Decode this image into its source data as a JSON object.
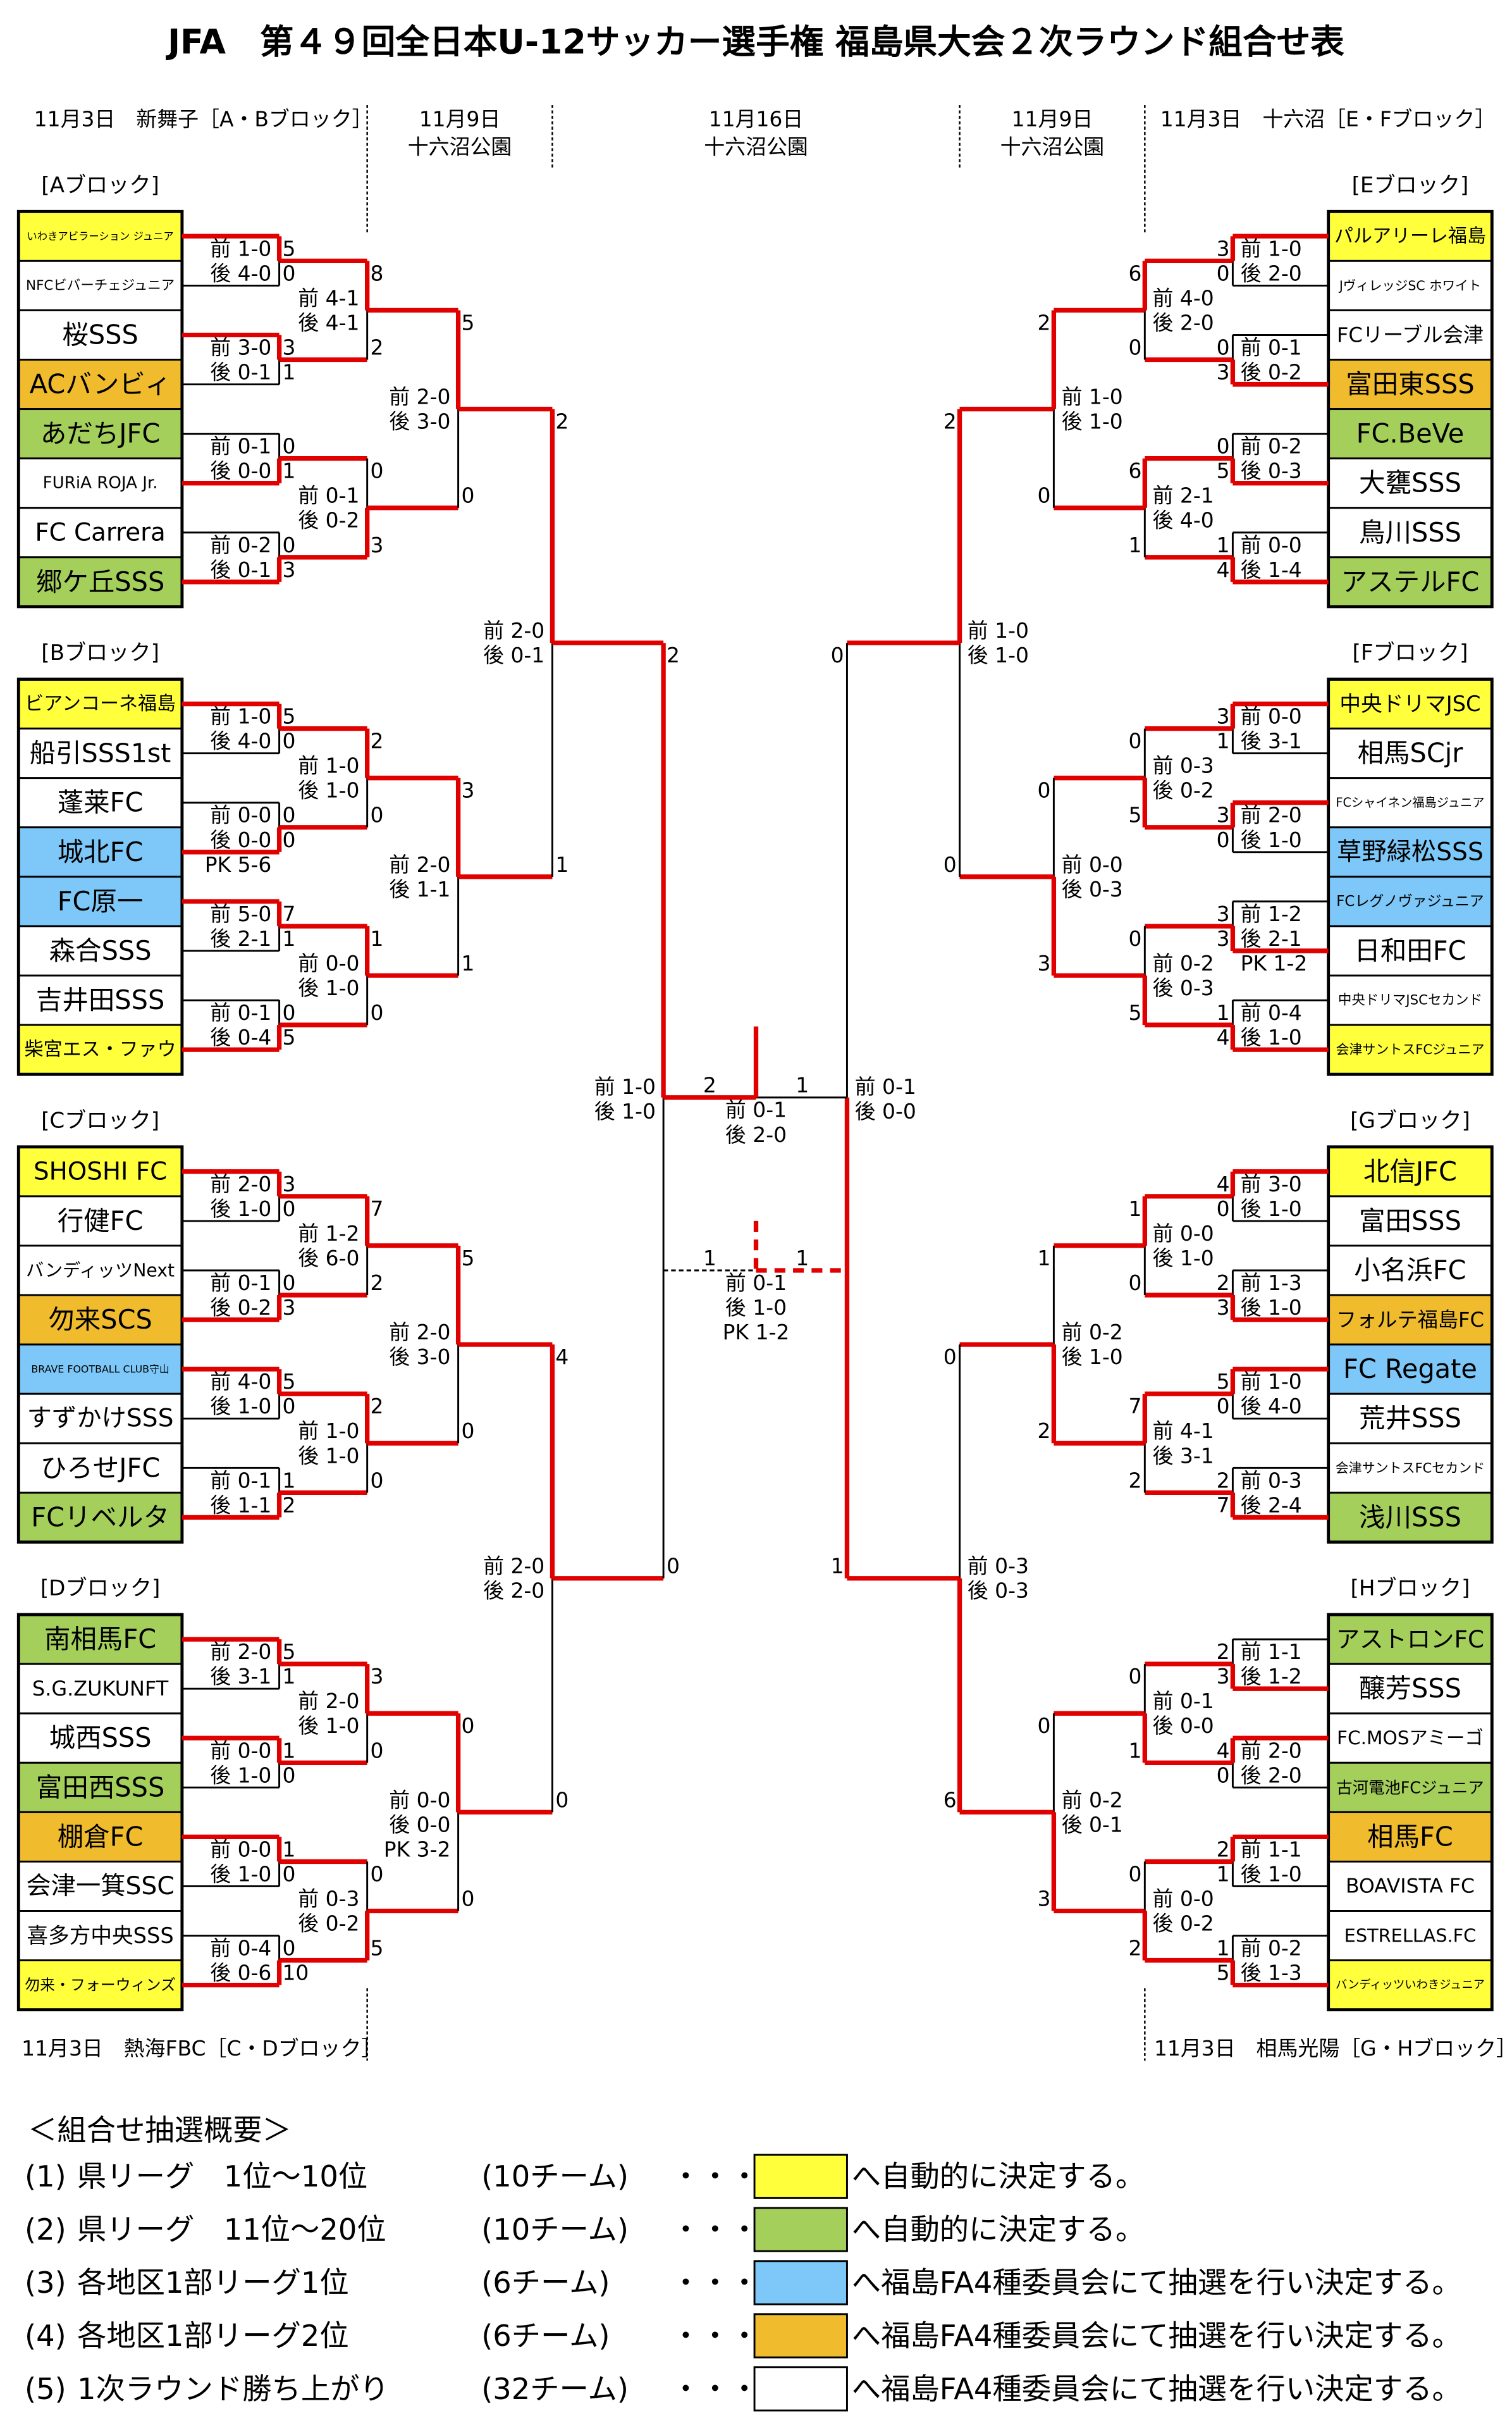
{
  "title": "JFA　第４９回全日本U-12サッカー選手権 福島県大会２次ラウンド組合せ表",
  "headers": {
    "left_r1": "11月3日　新舞子［A・Bブロック］",
    "left_r2_date": "11月9日",
    "left_r2_venue": "十六沼公園",
    "center_date": "11月16日",
    "center_venue": "十六沼公園",
    "right_r2_date": "11月9日",
    "right_r2_venue": "十六沼公園",
    "right_r1": "11月3日　十六沼［E・Fブロック］",
    "bottom_left": "11月3日　熱海FBC［C・Dブロック］",
    "bottom_right": "11月3日　相馬光陽［G・Hブロック］"
  },
  "labels": {
    "first": "前",
    "second": "後",
    "pk": "PK"
  },
  "colors": {
    "y": "#FFFF3C",
    "g": "#A5CF5B",
    "b": "#7DC8F8",
    "o": "#F0BC2E",
    "w": "#FFFFFF",
    "red": "#E00000"
  },
  "blocks": [
    {
      "label": "[Aブロック]",
      "side": "left",
      "teams": [
        [
          "いわきアビラーション ジュニア",
          "y"
        ],
        [
          "NFCビバーチェジュニア",
          "w"
        ],
        [
          "桜SSS",
          "w"
        ],
        [
          "ACバンビィ",
          "o"
        ],
        [
          "あだちJFC",
          "g"
        ],
        [
          "FURiA ROJA Jr.",
          "w"
        ],
        [
          "FC Carrera",
          "w"
        ],
        [
          "郷ケ丘SSS",
          "g"
        ]
      ],
      "r1": [
        {
          "s": [
            5,
            0
          ],
          "h1": "1-0",
          "h2": "4-0",
          "w": 0
        },
        {
          "s": [
            3,
            1
          ],
          "h1": "3-0",
          "h2": "0-1",
          "w": 0
        },
        {
          "s": [
            0,
            1
          ],
          "h1": "0-1",
          "h2": "0-0",
          "w": 1
        },
        {
          "s": [
            0,
            3
          ],
          "h1": "0-2",
          "h2": "0-1",
          "w": 1
        }
      ],
      "r2": [
        {
          "s": [
            8,
            2
          ],
          "h1": "4-1",
          "h2": "4-1",
          "w": 0
        },
        {
          "s": [
            0,
            3
          ],
          "h1": "0-1",
          "h2": "0-2",
          "w": 1
        }
      ],
      "r3": {
        "s": [
          5,
          0
        ],
        "h1": "2-0",
        "h2": "3-0",
        "w": 0
      }
    },
    {
      "label": "[Bブロック]",
      "side": "left",
      "teams": [
        [
          "ビアンコーネ福島",
          "y"
        ],
        [
          "船引SSS1st",
          "w"
        ],
        [
          "蓬莱FC",
          "w"
        ],
        [
          "城北FC",
          "b"
        ],
        [
          "FC原一",
          "b"
        ],
        [
          "森合SSS",
          "w"
        ],
        [
          "吉井田SSS",
          "w"
        ],
        [
          "柴宮エス・ファウ",
          "y"
        ]
      ],
      "r1": [
        {
          "s": [
            5,
            0
          ],
          "h1": "1-0",
          "h2": "4-0",
          "w": 0
        },
        {
          "s": [
            0,
            0
          ],
          "h1": "0-0",
          "h2": "0-0",
          "pk": "5-6",
          "w": 1
        },
        {
          "s": [
            7,
            1
          ],
          "h1": "5-0",
          "h2": "2-1",
          "w": 0
        },
        {
          "s": [
            0,
            5
          ],
          "h1": "0-1",
          "h2": "0-4",
          "w": 1
        }
      ],
      "r2": [
        {
          "s": [
            2,
            0
          ],
          "h1": "1-0",
          "h2": "1-0",
          "w": 0
        },
        {
          "s": [
            1,
            0
          ],
          "h1": "0-0",
          "h2": "1-0",
          "w": 0
        }
      ],
      "r3": {
        "s": [
          3,
          1
        ],
        "h1": "2-0",
        "h2": "1-1",
        "w": 0
      }
    },
    {
      "label": "[Cブロック]",
      "side": "left",
      "teams": [
        [
          "SHOSHI FC",
          "y"
        ],
        [
          "行健FC",
          "w"
        ],
        [
          "バンディッツNext",
          "w"
        ],
        [
          "勿来SCS",
          "o"
        ],
        [
          "BRAVE FOOTBALL CLUB守山",
          "b"
        ],
        [
          "すずかけSSS",
          "w"
        ],
        [
          "ひろせJFC",
          "w"
        ],
        [
          "FCリベルタ",
          "g"
        ]
      ],
      "r1": [
        {
          "s": [
            3,
            0
          ],
          "h1": "2-0",
          "h2": "1-0",
          "w": 0
        },
        {
          "s": [
            0,
            3
          ],
          "h1": "0-1",
          "h2": "0-2",
          "w": 1
        },
        {
          "s": [
            5,
            0
          ],
          "h1": "4-0",
          "h2": "1-0",
          "w": 0
        },
        {
          "s": [
            1,
            2
          ],
          "h1": "0-1",
          "h2": "1-1",
          "w": 1
        }
      ],
      "r2": [
        {
          "s": [
            7,
            2
          ],
          "h1": "1-2",
          "h2": "6-0",
          "w": 0
        },
        {
          "s": [
            2,
            0
          ],
          "h1": "1-0",
          "h2": "1-0",
          "w": 0
        }
      ],
      "r3": {
        "s": [
          5,
          0
        ],
        "h1": "2-0",
        "h2": "3-0",
        "w": 0
      }
    },
    {
      "label": "[Dブロック]",
      "side": "left",
      "teams": [
        [
          "南相馬FC",
          "g"
        ],
        [
          "S.G.ZUKUNFT",
          "w"
        ],
        [
          "城西SSS",
          "w"
        ],
        [
          "富田西SSS",
          "g"
        ],
        [
          "棚倉FC",
          "o"
        ],
        [
          "会津一箕SSC",
          "w"
        ],
        [
          "喜多方中央SSS",
          "w"
        ],
        [
          "勿来・フォーウィンズ",
          "y"
        ]
      ],
      "r1": [
        {
          "s": [
            5,
            1
          ],
          "h1": "2-0",
          "h2": "3-1",
          "w": 0
        },
        {
          "s": [
            1,
            0
          ],
          "h1": "0-0",
          "h2": "1-0",
          "w": 0
        },
        {
          "s": [
            1,
            0
          ],
          "h1": "0-0",
          "h2": "1-0",
          "w": 0
        },
        {
          "s": [
            0,
            10
          ],
          "h1": "0-4",
          "h2": "0-6",
          "w": 1
        }
      ],
      "r2": [
        {
          "s": [
            3,
            0
          ],
          "h1": "2-0",
          "h2": "1-0",
          "w": 0
        },
        {
          "s": [
            0,
            5
          ],
          "h1": "0-3",
          "h2": "0-2",
          "w": 1
        }
      ],
      "r3": {
        "s": [
          0,
          0
        ],
        "h1": "0-0",
        "h2": "0-0",
        "pk": "3-2",
        "w": 0
      }
    },
    {
      "label": "[Eブロック]",
      "side": "right",
      "teams": [
        [
          "パルアリーレ福島",
          "y"
        ],
        [
          "JヴィレッジSC ホワイト",
          "w"
        ],
        [
          "FCリーブル会津",
          "w"
        ],
        [
          "富田東SSS",
          "o"
        ],
        [
          "FC.BeVe",
          "g"
        ],
        [
          "大甕SSS",
          "w"
        ],
        [
          "鳥川SSS",
          "w"
        ],
        [
          "アステルFC",
          "g"
        ]
      ],
      "r1": [
        {
          "s": [
            3,
            0
          ],
          "h1": "1-0",
          "h2": "2-0",
          "w": 0
        },
        {
          "s": [
            0,
            3
          ],
          "h1": "0-1",
          "h2": "0-2",
          "w": 1
        },
        {
          "s": [
            0,
            5
          ],
          "h1": "0-2",
          "h2": "0-3",
          "w": 1
        },
        {
          "s": [
            1,
            4
          ],
          "h1": "0-0",
          "h2": "1-4",
          "w": 1
        }
      ],
      "r2": [
        {
          "s": [
            6,
            0
          ],
          "h1": "4-0",
          "h2": "2-0",
          "w": 0
        },
        {
          "s": [
            6,
            1
          ],
          "h1": "2-1",
          "h2": "4-0",
          "w": 0
        }
      ],
      "r3": {
        "s": [
          2,
          0
        ],
        "h1": "1-0",
        "h2": "1-0",
        "w": 0
      }
    },
    {
      "label": "[Fブロック]",
      "side": "right",
      "teams": [
        [
          "中央ドリマJSC",
          "y"
        ],
        [
          "相馬SCjr",
          "w"
        ],
        [
          "FCシャイネン福島ジュニア",
          "w"
        ],
        [
          "草野緑松SSS",
          "b"
        ],
        [
          "FCレグノヴァジュニア",
          "b"
        ],
        [
          "日和田FC",
          "w"
        ],
        [
          "中央ドリマJSCセカンド",
          "w"
        ],
        [
          "会津サントスFCジュニア",
          "y"
        ]
      ],
      "r1": [
        {
          "s": [
            3,
            1
          ],
          "h1": "0-0",
          "h2": "3-1",
          "w": 0
        },
        {
          "s": [
            3,
            0
          ],
          "h1": "2-0",
          "h2": "1-0",
          "w": 0
        },
        {
          "s": [
            3,
            3
          ],
          "h1": "1-2",
          "h2": "2-1",
          "pk": "1-2",
          "w": 1
        },
        {
          "s": [
            1,
            4
          ],
          "h1": "0-4",
          "h2": "1-0",
          "w": 1
        }
      ],
      "r2": [
        {
          "s": [
            0,
            5
          ],
          "h1": "0-3",
          "h2": "0-2",
          "w": 1
        },
        {
          "s": [
            0,
            5
          ],
          "h1": "0-2",
          "h2": "0-3",
          "w": 1
        }
      ],
      "r3": {
        "s": [
          0,
          3
        ],
        "h1": "0-0",
        "h2": "0-3",
        "w": 1
      }
    },
    {
      "label": "[Gブロック]",
      "side": "right",
      "teams": [
        [
          "北信JFC",
          "y"
        ],
        [
          "富田SSS",
          "w"
        ],
        [
          "小名浜FC",
          "w"
        ],
        [
          "フォルテ福島FC",
          "o"
        ],
        [
          "FC Regate",
          "b"
        ],
        [
          "荒井SSS",
          "w"
        ],
        [
          "会津サントスFCセカンド",
          "w"
        ],
        [
          "浅川SSS",
          "g"
        ]
      ],
      "r1": [
        {
          "s": [
            4,
            0
          ],
          "h1": "3-0",
          "h2": "1-0",
          "w": 0
        },
        {
          "s": [
            2,
            3
          ],
          "h1": "1-3",
          "h2": "1-0",
          "w": 1
        },
        {
          "s": [
            5,
            0
          ],
          "h1": "1-0",
          "h2": "4-0",
          "w": 0
        },
        {
          "s": [
            2,
            7
          ],
          "h1": "0-3",
          "h2": "2-4",
          "w": 1
        }
      ],
      "r2": [
        {
          "s": [
            1,
            0
          ],
          "h1": "0-0",
          "h2": "1-0",
          "w": 0
        },
        {
          "s": [
            7,
            2
          ],
          "h1": "4-1",
          "h2": "3-1",
          "w": 0
        }
      ],
      "r3": {
        "s": [
          1,
          2
        ],
        "h1": "0-2",
        "h2": "1-0",
        "w": 1
      }
    },
    {
      "label": "[Hブロック]",
      "side": "right",
      "teams": [
        [
          "アストロンFC",
          "g"
        ],
        [
          "醸芳SSS",
          "w"
        ],
        [
          "FC.MOSアミーゴ",
          "w"
        ],
        [
          "古河電池FCジュニア",
          "g"
        ],
        [
          "相馬FC",
          "o"
        ],
        [
          "BOAVISTA FC",
          "w"
        ],
        [
          "ESTRELLAS.FC",
          "w"
        ],
        [
          "バンディッツいわきジュニア",
          "y"
        ]
      ],
      "r1": [
        {
          "s": [
            2,
            3
          ],
          "h1": "1-1",
          "h2": "1-2",
          "w": 1
        },
        {
          "s": [
            4,
            0
          ],
          "h1": "2-0",
          "h2": "2-0",
          "w": 0
        },
        {
          "s": [
            2,
            1
          ],
          "h1": "1-1",
          "h2": "1-0",
          "w": 0
        },
        {
          "s": [
            1,
            5
          ],
          "h1": "0-2",
          "h2": "1-3",
          "w": 1
        }
      ],
      "r2": [
        {
          "s": [
            0,
            1
          ],
          "h1": "0-1",
          "h2": "0-0",
          "w": 1
        },
        {
          "s": [
            0,
            2
          ],
          "h1": "0-0",
          "h2": "0-2",
          "w": 1
        }
      ],
      "r3": {
        "s": [
          0,
          3
        ],
        "h1": "0-2",
        "h2": "0-1",
        "w": 1
      }
    }
  ],
  "cross": {
    "ab": {
      "s": [
        2,
        1
      ],
      "h1": "2-0",
      "h2": "0-1",
      "w": 0
    },
    "cd": {
      "s": [
        4,
        0
      ],
      "h1": "2-0",
      "h2": "2-0",
      "w": 0
    },
    "ef": {
      "s": [
        2,
        0
      ],
      "h1": "1-0",
      "h2": "1-0",
      "w": 0
    },
    "gh": {
      "s": [
        0,
        6
      ],
      "h1": "0-3",
      "h2": "0-3",
      "w": 1
    },
    "sf_left": {
      "s": [
        2,
        0
      ],
      "h1": "1-0",
      "h2": "1-0",
      "w": 0
    },
    "sf_right": {
      "s": [
        0,
        1
      ],
      "h1": "0-1",
      "h2": "0-0",
      "w": 1
    },
    "final": {
      "s": [
        2,
        1
      ],
      "h1": "0-1",
      "h2": "2-0",
      "w": 0
    },
    "third": {
      "s": [
        1,
        1
      ],
      "h1": "0-1",
      "h2": "1-0",
      "pk": "1-2",
      "w": 1
    }
  },
  "legend": {
    "heading": "＜組合せ抽選概要＞",
    "dots": "・・・",
    "rows": [
      {
        "num": "(1)",
        "criteria": "県リーグ　1位～10位",
        "count": "(10チーム)",
        "color": "y",
        "desc": "へ自動的に決定する。"
      },
      {
        "num": "(2)",
        "criteria": "県リーグ　11位～20位",
        "count": "(10チーム)",
        "color": "g",
        "desc": "へ自動的に決定する。"
      },
      {
        "num": "(3)",
        "criteria": "各地区1部リーグ1位",
        "count": "(6チーム)",
        "color": "b",
        "desc": "へ福島FA4種委員会にて抽選を行い決定する。"
      },
      {
        "num": "(4)",
        "criteria": "各地区1部リーグ2位",
        "count": "(6チーム)",
        "color": "o",
        "desc": "へ福島FA4種委員会にて抽選を行い決定する。"
      },
      {
        "num": "(5)",
        "criteria": "1次ラウンド勝ち上がり",
        "count": "(32チーム)",
        "color": "w",
        "desc": "へ福島FA4種委員会にて抽選を行い決定する。"
      }
    ]
  }
}
